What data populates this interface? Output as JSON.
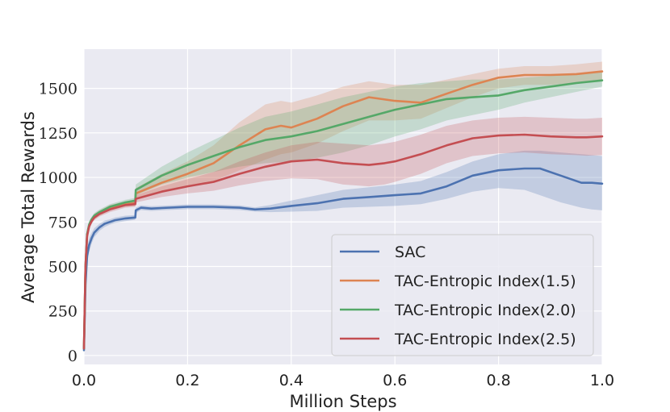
{
  "chart_data": {
    "type": "line",
    "title": "",
    "xlabel": "Million Steps",
    "ylabel": "Average Total Rewards",
    "xlim": [
      0.0,
      1.0
    ],
    "ylim": [
      -50,
      1720
    ],
    "xticks": [
      0.0,
      0.2,
      0.4,
      0.6,
      0.8,
      1.0
    ],
    "xtick_labels": [
      "0.0",
      "0.2",
      "0.4",
      "0.6",
      "0.8",
      "1.0"
    ],
    "yticks": [
      0,
      250,
      500,
      750,
      1000,
      1250,
      1500
    ],
    "ytick_labels": [
      "0",
      "250",
      "500",
      "750",
      "1000",
      "1250",
      "1500"
    ],
    "grid": true,
    "legend_position": "bottom-right",
    "series": [
      {
        "name": "SAC",
        "color": "#4c72b0",
        "x": [
          0,
          0.003,
          0.006,
          0.01,
          0.015,
          0.02,
          0.03,
          0.04,
          0.05,
          0.06,
          0.08,
          0.099,
          0.1,
          0.11,
          0.13,
          0.15,
          0.2,
          0.25,
          0.3,
          0.33,
          0.36,
          0.4,
          0.45,
          0.5,
          0.55,
          0.6,
          0.65,
          0.7,
          0.75,
          0.8,
          0.85,
          0.88,
          0.92,
          0.96,
          0.98,
          1.0
        ],
        "y": [
          30,
          400,
          560,
          620,
          660,
          690,
          720,
          740,
          750,
          760,
          770,
          775,
          815,
          830,
          825,
          828,
          835,
          835,
          830,
          820,
          825,
          840,
          855,
          880,
          890,
          900,
          910,
          950,
          1010,
          1040,
          1050,
          1050,
          1010,
          970,
          970,
          965
        ],
        "lower": [
          15,
          350,
          520,
          580,
          630,
          665,
          700,
          722,
          735,
          745,
          755,
          762,
          800,
          817,
          812,
          815,
          822,
          822,
          817,
          808,
          805,
          808,
          812,
          830,
          835,
          840,
          850,
          880,
          920,
          940,
          930,
          900,
          860,
          830,
          820,
          815
        ],
        "upper": [
          45,
          450,
          600,
          660,
          690,
          715,
          740,
          758,
          765,
          775,
          785,
          788,
          830,
          843,
          838,
          841,
          848,
          848,
          843,
          832,
          845,
          870,
          900,
          930,
          945,
          960,
          980,
          1030,
          1090,
          1130,
          1150,
          1150,
          1140,
          1130,
          1125,
          1120
        ]
      },
      {
        "name": "TAC-Entropic Index(1.5)",
        "color": "#dd8452",
        "x": [
          0,
          0.003,
          0.006,
          0.01,
          0.015,
          0.02,
          0.03,
          0.05,
          0.08,
          0.099,
          0.1,
          0.15,
          0.2,
          0.25,
          0.3,
          0.35,
          0.38,
          0.4,
          0.45,
          0.5,
          0.55,
          0.6,
          0.65,
          0.7,
          0.75,
          0.8,
          0.85,
          0.9,
          0.95,
          1.0
        ],
        "y": [
          40,
          500,
          680,
          730,
          760,
          780,
          800,
          830,
          850,
          855,
          910,
          970,
          1020,
          1080,
          1180,
          1270,
          1290,
          1280,
          1330,
          1400,
          1450,
          1430,
          1420,
          1470,
          1520,
          1560,
          1575,
          1575,
          1580,
          1595
        ],
        "lower": [
          25,
          460,
          650,
          710,
          745,
          765,
          785,
          815,
          835,
          840,
          880,
          920,
          950,
          980,
          1040,
          1100,
          1130,
          1140,
          1190,
          1260,
          1320,
          1320,
          1330,
          1390,
          1450,
          1500,
          1520,
          1520,
          1530,
          1545
        ],
        "upper": [
          55,
          540,
          710,
          750,
          775,
          795,
          815,
          845,
          865,
          870,
          940,
          1020,
          1090,
          1180,
          1310,
          1410,
          1430,
          1420,
          1460,
          1510,
          1540,
          1520,
          1520,
          1550,
          1580,
          1610,
          1625,
          1625,
          1635,
          1650
        ]
      },
      {
        "name": "TAC-Entropic Index(2.0)",
        "color": "#55a868",
        "x": [
          0,
          0.003,
          0.006,
          0.01,
          0.015,
          0.02,
          0.03,
          0.05,
          0.08,
          0.099,
          0.1,
          0.15,
          0.2,
          0.25,
          0.3,
          0.35,
          0.4,
          0.45,
          0.5,
          0.55,
          0.6,
          0.65,
          0.7,
          0.75,
          0.8,
          0.85,
          0.9,
          0.95,
          1.0
        ],
        "y": [
          40,
          500,
          680,
          735,
          765,
          785,
          805,
          835,
          860,
          870,
          930,
          1010,
          1070,
          1120,
          1170,
          1210,
          1230,
          1260,
          1300,
          1340,
          1380,
          1410,
          1440,
          1450,
          1460,
          1490,
          1510,
          1530,
          1545
        ],
        "lower": [
          25,
          460,
          650,
          715,
          750,
          770,
          790,
          820,
          845,
          855,
          900,
          960,
          1000,
          1030,
          1060,
          1080,
          1090,
          1110,
          1140,
          1180,
          1230,
          1270,
          1320,
          1350,
          1380,
          1420,
          1450,
          1480,
          1510
        ],
        "upper": [
          55,
          540,
          710,
          755,
          780,
          800,
          820,
          850,
          875,
          885,
          960,
          1060,
          1140,
          1210,
          1280,
          1340,
          1370,
          1410,
          1450,
          1480,
          1510,
          1530,
          1540,
          1550,
          1550,
          1560,
          1570,
          1580,
          1590
        ]
      },
      {
        "name": "TAC-Entropic Index(2.5)",
        "color": "#c44e52",
        "x": [
          0,
          0.003,
          0.006,
          0.01,
          0.015,
          0.02,
          0.03,
          0.05,
          0.08,
          0.099,
          0.1,
          0.15,
          0.2,
          0.25,
          0.3,
          0.35,
          0.4,
          0.45,
          0.5,
          0.55,
          0.58,
          0.6,
          0.65,
          0.7,
          0.75,
          0.8,
          0.85,
          0.9,
          0.95,
          0.97,
          1.0
        ],
        "y": [
          40,
          500,
          670,
          725,
          755,
          775,
          795,
          820,
          845,
          850,
          880,
          920,
          950,
          975,
          1020,
          1060,
          1090,
          1100,
          1080,
          1070,
          1080,
          1090,
          1130,
          1180,
          1220,
          1235,
          1240,
          1230,
          1225,
          1225,
          1230
        ],
        "lower": [
          25,
          460,
          640,
          705,
          740,
          760,
          780,
          805,
          830,
          835,
          860,
          890,
          910,
          925,
          955,
          980,
          995,
          990,
          960,
          950,
          960,
          975,
          1020,
          1080,
          1120,
          1135,
          1140,
          1130,
          1125,
          1122,
          1125
        ],
        "upper": [
          55,
          540,
          700,
          745,
          770,
          790,
          810,
          835,
          860,
          865,
          900,
          950,
          990,
          1030,
          1090,
          1140,
          1180,
          1200,
          1190,
          1180,
          1190,
          1200,
          1240,
          1290,
          1320,
          1335,
          1340,
          1335,
          1330,
          1330,
          1335
        ]
      }
    ]
  }
}
